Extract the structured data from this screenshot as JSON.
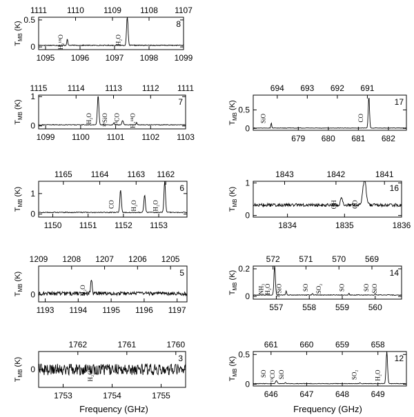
{
  "figure": {
    "xlabel_left": "Frequency (GHz)",
    "xlabel_right": "Frequency (GHz)"
  },
  "chart_data": [
    {
      "type": "line",
      "panel": "8",
      "ylabel_main": "T",
      "ylabel_sub": "MB",
      "ylabel_unit": "(K)",
      "xlim": [
        1094.8,
        1099
      ],
      "ylim": [
        -0.05,
        0.55
      ],
      "bottom_ticks": [
        1095,
        1096,
        1097,
        1098,
        1099
      ],
      "top_ticks": [
        {
          "label": "1111",
          "x": 1094.8
        },
        {
          "label": "1110",
          "x": 1095.87
        },
        {
          "label": "1109",
          "x": 1096.94
        },
        {
          "label": "1108",
          "x": 1098.0
        },
        {
          "label": "1107",
          "x": 1099.0
        }
      ],
      "yticks": [
        0,
        0.5
      ],
      "noise": 0.008,
      "baseline": 0.03,
      "peaks": [
        {
          "x": 1095.63,
          "h": 0.12,
          "w": 0.02
        },
        {
          "x": 1097.37,
          "h": 0.55,
          "w": 0.03
        }
      ],
      "annotations": [
        {
          "label": "H₂¹⁸O",
          "x": 1095.5
        },
        {
          "label": "H₂O",
          "x": 1097.17
        }
      ]
    },
    {
      "type": "line",
      "panel": "7",
      "ylabel_main": "T",
      "ylabel_sub": "MB",
      "ylabel_unit": "(K)",
      "xlim": [
        1098.8,
        1103
      ],
      "ylim": [
        -0.1,
        1.05
      ],
      "bottom_ticks": [
        1099,
        1100,
        1101,
        1102,
        1103
      ],
      "top_ticks": [
        {
          "label": "1115",
          "x": 1098.8
        },
        {
          "label": "1114",
          "x": 1099.87
        },
        {
          "label": "1113",
          "x": 1100.94
        },
        {
          "label": "1112",
          "x": 1102.0
        },
        {
          "label": "1111",
          "x": 1103.0
        }
      ],
      "yticks": [
        0,
        1
      ],
      "noise": 0.012,
      "baseline": 0.04,
      "peaks": [
        {
          "x": 1100.5,
          "h": 1.0,
          "w": 0.03
        },
        {
          "x": 1100.95,
          "h": 0.08,
          "w": 0.02
        },
        {
          "x": 1101.2,
          "h": 0.15,
          "w": 0.03
        },
        {
          "x": 1101.6,
          "h": 0.08,
          "w": 0.02
        }
      ],
      "annotations": [
        {
          "label": "H₂O",
          "x": 1100.3
        },
        {
          "label": "²⁹SiO",
          "x": 1100.75
        },
        {
          "label": "¹³CO",
          "x": 1101.1
        },
        {
          "label": "H₂¹⁸O",
          "x": 1101.55
        }
      ]
    },
    {
      "type": "line",
      "panel": "17",
      "ylabel_main": "T",
      "ylabel_sub": "MB",
      "ylabel_unit": "(K)",
      "xlim": [
        677.5,
        682.6
      ],
      "ylim": [
        -0.05,
        0.9
      ],
      "bottom_ticks": [
        679,
        680,
        681,
        682
      ],
      "top_ticks": [
        {
          "label": "694",
          "x": 678.3
        },
        {
          "label": "693",
          "x": 679.3
        },
        {
          "label": "692",
          "x": 680.3
        },
        {
          "label": "691",
          "x": 681.3
        }
      ],
      "yticks": [
        0,
        0.5
      ],
      "noise": 0.006,
      "baseline": 0.01,
      "peaks": [
        {
          "x": 678.1,
          "h": 0.14,
          "w": 0.02
        },
        {
          "x": 681.35,
          "h": 0.85,
          "w": 0.03
        }
      ],
      "annotations": [
        {
          "label": "SiO",
          "x": 677.9
        },
        {
          "label": "CO",
          "x": 681.15
        }
      ]
    },
    {
      "type": "line",
      "panel": "6",
      "ylabel_main": "T",
      "ylabel_sub": "MB",
      "ylabel_unit": "(K)",
      "xlim": [
        1149.6,
        1153.8
      ],
      "ylim": [
        -0.15,
        1.6
      ],
      "bottom_ticks": [
        1150,
        1151,
        1152,
        1153
      ],
      "top_ticks": [
        {
          "label": "1165",
          "x": 1150.3
        },
        {
          "label": "1164",
          "x": 1151.33
        },
        {
          "label": "1163",
          "x": 1152.36
        },
        {
          "label": "1162",
          "x": 1153.2
        }
      ],
      "yticks": [
        0,
        1
      ],
      "noise": 0.02,
      "baseline": 0.08,
      "peaks": [
        {
          "x": 1151.92,
          "h": 1.1,
          "w": 0.03
        },
        {
          "x": 1152.6,
          "h": 0.85,
          "w": 0.03
        },
        {
          "x": 1153.17,
          "h": 1.55,
          "w": 0.03
        }
      ],
      "annotations": [
        {
          "label": "CO",
          "x": 1151.72
        },
        {
          "label": "H₂O",
          "x": 1152.35
        },
        {
          "label": "H₂O",
          "x": 1152.97
        }
      ]
    },
    {
      "type": "line",
      "panel": "16",
      "ylabel_main": "T",
      "ylabel_sub": "MB",
      "ylabel_unit": "(K)",
      "xlim": [
        1833.4,
        1836
      ],
      "ylim": [
        -0.05,
        1.05
      ],
      "bottom_ticks": [
        1834,
        1835,
        1836
      ],
      "top_ticks": [
        {
          "label": "1843",
          "x": 1833.95
        },
        {
          "label": "1842",
          "x": 1834.85
        },
        {
          "label": "1841",
          "x": 1835.7
        }
      ],
      "yticks": [
        0,
        1
      ],
      "noise": 0.05,
      "baseline": 0.32,
      "peaks": [
        {
          "x": 1834.95,
          "h": 0.22,
          "w": 0.03
        },
        {
          "x": 1835.35,
          "h": 0.78,
          "w": 0.04
        }
      ],
      "annotations": [
        {
          "label": "OH",
          "x": 1834.85
        },
        {
          "label": "CO",
          "x": 1835.22
        }
      ]
    },
    {
      "type": "line",
      "panel": "5",
      "ylabel_main": "T",
      "ylabel_sub": "MB",
      "ylabel_unit": "(K)",
      "xlim": [
        1192.8,
        1197.3
      ],
      "ylim": [
        -0.3,
        1.2
      ],
      "bottom_ticks": [
        1193,
        1194,
        1195,
        1196,
        1197
      ],
      "top_ticks": [
        {
          "label": "1209",
          "x": 1192.8
        },
        {
          "label": "1208",
          "x": 1193.8
        },
        {
          "label": "1207",
          "x": 1194.8
        },
        {
          "label": "1206",
          "x": 1195.8
        },
        {
          "label": "1205",
          "x": 1196.8
        }
      ],
      "yticks": [
        0
      ],
      "noise": 0.08,
      "baseline": 0.05,
      "peaks": [
        {
          "x": 1194.4,
          "h": 0.6,
          "w": 0.03
        }
      ],
      "annotations": [
        {
          "label": "H₂O",
          "x": 1194.2
        }
      ]
    },
    {
      "type": "line",
      "panel": "14",
      "ylabel_main": "T",
      "ylabel_sub": "MB",
      "ylabel_unit": "(K)",
      "xlim": [
        556.3,
        560.8
      ],
      "ylim": [
        -0.02,
        0.22
      ],
      "bottom_ticks": [
        557,
        558,
        559,
        560
      ],
      "top_ticks": [
        {
          "label": "572",
          "x": 556.9
        },
        {
          "label": "571",
          "x": 557.9
        },
        {
          "label": "570",
          "x": 558.9
        },
        {
          "label": "569",
          "x": 559.9
        }
      ],
      "yticks": [
        0,
        0.2
      ],
      "noise": 0.0025,
      "baseline": 0.01,
      "peaks": [
        {
          "x": 556.95,
          "h": 0.22,
          "w": 0.03
        },
        {
          "x": 557.3,
          "h": 0.03,
          "w": 0.02
        },
        {
          "x": 558.1,
          "h": 0.012,
          "w": 0.02
        },
        {
          "x": 559.2,
          "h": 0.012,
          "w": 0.02
        },
        {
          "x": 560.0,
          "h": 0.012,
          "w": 0.02
        }
      ],
      "annotations": [
        {
          "label": "NH₃",
          "x": 556.6
        },
        {
          "label": "H₂O",
          "x": 556.8
        },
        {
          "label": "²⁹SiO",
          "x": 557.15
        },
        {
          "label": "SO",
          "x": 557.95
        },
        {
          "label": "SO₂",
          "x": 558.35
        },
        {
          "label": "SO",
          "x": 559.05
        },
        {
          "label": "SO",
          "x": 559.8
        },
        {
          "label": "SiO",
          "x": 560.05
        }
      ]
    },
    {
      "type": "line",
      "panel": "3",
      "ylabel_main": "T",
      "ylabel_sub": "MB",
      "ylabel_unit": "(K)",
      "xlim": [
        1752.5,
        1755.5
      ],
      "ylim": [
        -3.5,
        3.5
      ],
      "bottom_ticks": [
        1753,
        1754,
        1755
      ],
      "top_ticks": [
        {
          "label": "1762",
          "x": 1753.3
        },
        {
          "label": "1761",
          "x": 1754.3
        },
        {
          "label": "1760",
          "x": 1755.3
        }
      ],
      "yticks": [
        0
      ],
      "noise": 1.1,
      "baseline": 0.0,
      "peaks": [],
      "annotations": [
        {
          "label": "H₂O",
          "x": 1753.6
        }
      ]
    },
    {
      "type": "line",
      "panel": "12",
      "ylabel_main": "T",
      "ylabel_sub": "MB",
      "ylabel_unit": "(K)",
      "xlim": [
        645.5,
        649.8
      ],
      "ylim": [
        -0.03,
        0.55
      ],
      "bottom_ticks": [
        646,
        647,
        648,
        649
      ],
      "top_ticks": [
        {
          "label": "661",
          "x": 646.0
        },
        {
          "label": "660",
          "x": 647.0
        },
        {
          "label": "659",
          "x": 648.0
        },
        {
          "label": "658",
          "x": 649.0
        }
      ],
      "yticks": [
        0,
        0.5
      ],
      "noise": 0.004,
      "baseline": 0.01,
      "peaks": [
        {
          "x": 646.15,
          "h": 0.05,
          "w": 0.03
        },
        {
          "x": 646.4,
          "h": 0.02,
          "w": 0.02
        },
        {
          "x": 648.5,
          "h": 0.015,
          "w": 0.02
        },
        {
          "x": 649.25,
          "h": 0.55,
          "w": 0.03
        }
      ],
      "annotations": [
        {
          "label": "SO",
          "x": 645.85
        },
        {
          "label": "¹³CO",
          "x": 646.1
        },
        {
          "label": "SiO",
          "x": 646.35
        },
        {
          "label": "SO₂",
          "x": 648.4
        },
        {
          "label": "H₂O",
          "x": 649.05
        }
      ]
    }
  ]
}
